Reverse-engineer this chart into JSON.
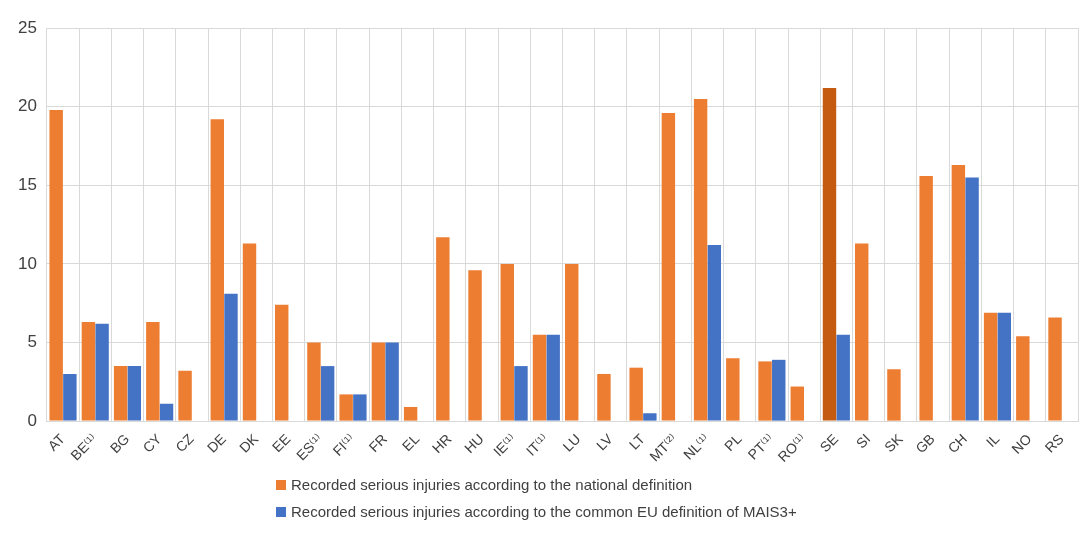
{
  "chart_data": {
    "type": "bar",
    "categories": [
      "AT",
      "BE⁽¹⁾",
      "BG",
      "CY",
      "CZ",
      "DE",
      "DK",
      "EE",
      "ES⁽¹⁾",
      "FI⁽¹⁾",
      "FR",
      "EL",
      "HR",
      "HU",
      "IE⁽¹⁾",
      "IT⁽¹⁾",
      "LU",
      "LV",
      "LT",
      "MT⁽²⁾",
      "NL⁽¹⁾",
      "PL",
      "PT⁽¹⁾",
      "RO⁽¹⁾",
      "SE",
      "SI",
      "SK",
      "GB",
      "CH",
      "IL",
      "NO",
      "RS"
    ],
    "series": [
      {
        "name": "Recorded serious injuries according to the national definition",
        "color": "#ed7d31",
        "colors": [
          "#ed7d31",
          "#ed7d31",
          "#ed7d31",
          "#ed7d31",
          "#ed7d31",
          "#ed7d31",
          "#ed7d31",
          "#ed7d31",
          "#ed7d31",
          "#ed7d31",
          "#ed7d31",
          "#ed7d31",
          "#ed7d31",
          "#ed7d31",
          "#ed7d31",
          "#ed7d31",
          "#ed7d31",
          "#ed7d31",
          "#ed7d31",
          "#ed7d31",
          "#ed7d31",
          "#ed7d31",
          "#ed7d31",
          "#ed7d31",
          "#c55a11",
          "#ed7d31",
          "#ed7d31",
          "#ed7d31",
          "#ed7d31",
          "#ed7d31",
          "#ed7d31",
          "#ed7d31"
        ],
        "values": [
          19.8,
          6.3,
          3.5,
          6.3,
          3.2,
          19.2,
          11.3,
          7.4,
          5.0,
          1.7,
          5.0,
          0.9,
          11.7,
          9.6,
          10.0,
          5.5,
          10.0,
          3.0,
          3.4,
          19.6,
          20.5,
          4.0,
          3.8,
          2.2,
          21.2,
          11.3,
          3.3,
          15.6,
          16.3,
          6.9,
          5.4,
          6.6
        ]
      },
      {
        "name": "Recorded serious injuries according to the common EU definition of MAIS3+",
        "color": "#4472c4",
        "values": [
          3.0,
          6.2,
          3.5,
          1.1,
          null,
          8.1,
          null,
          null,
          3.5,
          1.7,
          5.0,
          null,
          null,
          null,
          3.5,
          5.5,
          null,
          null,
          0.5,
          null,
          11.2,
          null,
          3.9,
          null,
          5.5,
          null,
          null,
          null,
          15.5,
          6.9,
          null,
          null
        ]
      }
    ],
    "ylim": [
      0,
      25
    ],
    "yticks": [
      0,
      5,
      10,
      15,
      20,
      25
    ],
    "grid": true,
    "legend": "bottom"
  }
}
